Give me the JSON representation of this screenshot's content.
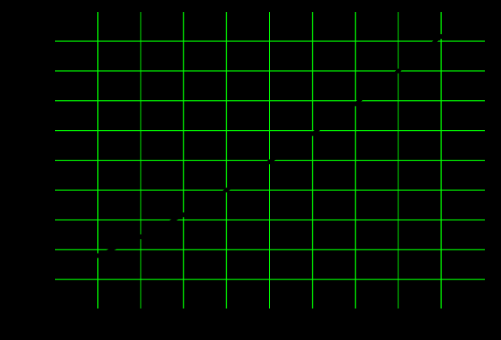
{
  "chart_data": {
    "type": "line",
    "title": "",
    "xlabel": "",
    "ylabel": "",
    "x": [
      1,
      2,
      3,
      4,
      5,
      6,
      7,
      8,
      9
    ],
    "series": [
      {
        "values": [
          1.8,
          2.43,
          3.17,
          4.0,
          4.95,
          5.9,
          6.9,
          8.0,
          9.16
        ]
      }
    ],
    "xlim": [
      0,
      10
    ],
    "ylim": [
      0,
      10
    ],
    "xgrid": [
      1,
      2,
      3,
      4,
      5,
      6,
      7,
      8,
      9
    ],
    "ygrid": [
      1,
      2,
      3,
      4,
      5,
      6,
      7,
      8,
      9
    ],
    "grid": true,
    "colors": {
      "background": "#000000",
      "grid": "#00ff00",
      "line": "#000000"
    }
  }
}
